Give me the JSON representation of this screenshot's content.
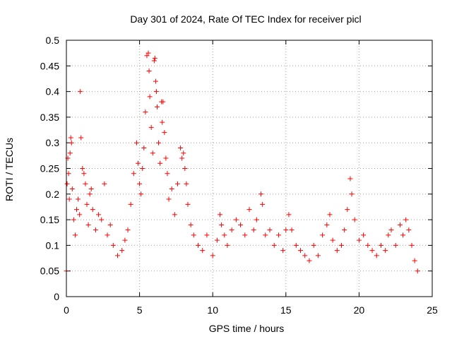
{
  "chart_data": {
    "type": "scatter",
    "title": "Day 301 of 2024, Rate Of TEC Index for receiver picl",
    "xlabel": "GPS time / hours",
    "ylabel": "ROTI / TECUs",
    "xlim": [
      0,
      25
    ],
    "ylim": [
      0,
      0.5
    ],
    "x_ticks": [
      0,
      5,
      10,
      15,
      20,
      25
    ],
    "y_ticks": [
      0,
      0.05,
      0.1,
      0.15,
      0.2,
      0.25,
      0.3,
      0.35,
      0.4,
      0.45,
      0.5
    ],
    "x_tick_labels": [
      "0",
      "5",
      "10",
      "15",
      "20",
      "25"
    ],
    "y_tick_labels": [
      "0",
      "0.05",
      "0.1",
      "0.15",
      "0.2",
      "0.25",
      "0.3",
      "0.35",
      "0.4",
      "0.45",
      "0.5"
    ],
    "grid": true,
    "marker": "+",
    "color": "#ff0000",
    "series": [
      {
        "name": "ROTI",
        "points": [
          [
            0.0,
            0.05
          ],
          [
            0.05,
            0.22
          ],
          [
            0.1,
            0.27
          ],
          [
            0.15,
            0.24
          ],
          [
            0.2,
            0.19
          ],
          [
            0.25,
            0.28
          ],
          [
            0.3,
            0.31
          ],
          [
            0.35,
            0.3
          ],
          [
            0.4,
            0.21
          ],
          [
            0.5,
            0.15
          ],
          [
            0.6,
            0.12
          ],
          [
            0.7,
            0.17
          ],
          [
            0.8,
            0.19
          ],
          [
            0.9,
            0.16
          ],
          [
            0.95,
            0.4
          ],
          [
            1.0,
            0.31
          ],
          [
            1.1,
            0.25
          ],
          [
            1.2,
            0.24
          ],
          [
            1.3,
            0.22
          ],
          [
            1.4,
            0.18
          ],
          [
            1.5,
            0.14
          ],
          [
            1.6,
            0.2
          ],
          [
            1.7,
            0.21
          ],
          [
            1.8,
            0.17
          ],
          [
            2.0,
            0.13
          ],
          [
            2.2,
            0.16
          ],
          [
            2.4,
            0.15
          ],
          [
            2.6,
            0.22
          ],
          [
            2.8,
            0.12
          ],
          [
            3.0,
            0.14
          ],
          [
            3.2,
            0.1
          ],
          [
            3.5,
            0.08
          ],
          [
            3.8,
            0.09
          ],
          [
            4.0,
            0.11
          ],
          [
            4.2,
            0.13
          ],
          [
            4.4,
            0.18
          ],
          [
            4.6,
            0.24
          ],
          [
            4.8,
            0.3
          ],
          [
            4.9,
            0.26
          ],
          [
            5.0,
            0.22
          ],
          [
            5.1,
            0.2
          ],
          [
            5.2,
            0.25
          ],
          [
            5.3,
            0.29
          ],
          [
            5.4,
            0.36
          ],
          [
            5.5,
            0.47
          ],
          [
            5.6,
            0.475
          ],
          [
            5.65,
            0.44
          ],
          [
            5.7,
            0.39
          ],
          [
            5.8,
            0.33
          ],
          [
            5.9,
            0.28
          ],
          [
            6.0,
            0.46
          ],
          [
            6.05,
            0.465
          ],
          [
            6.1,
            0.42
          ],
          [
            6.15,
            0.4
          ],
          [
            6.2,
            0.37
          ],
          [
            6.3,
            0.3
          ],
          [
            6.4,
            0.26
          ],
          [
            6.5,
            0.38
          ],
          [
            6.55,
            0.34
          ],
          [
            6.6,
            0.38
          ],
          [
            6.7,
            0.32
          ],
          [
            6.8,
            0.27
          ],
          [
            6.9,
            0.24
          ],
          [
            7.0,
            0.19
          ],
          [
            7.2,
            0.21
          ],
          [
            7.4,
            0.16
          ],
          [
            7.6,
            0.22
          ],
          [
            7.8,
            0.29
          ],
          [
            7.9,
            0.27
          ],
          [
            8.0,
            0.28
          ],
          [
            8.1,
            0.25
          ],
          [
            8.2,
            0.22
          ],
          [
            8.3,
            0.18
          ],
          [
            8.5,
            0.14
          ],
          [
            8.7,
            0.12
          ],
          [
            9.0,
            0.1
          ],
          [
            9.3,
            0.09
          ],
          [
            9.6,
            0.12
          ],
          [
            10.0,
            0.08
          ],
          [
            10.3,
            0.11
          ],
          [
            10.5,
            0.16
          ],
          [
            10.6,
            0.14
          ],
          [
            10.8,
            0.12
          ],
          [
            11.0,
            0.1
          ],
          [
            11.3,
            0.13
          ],
          [
            11.6,
            0.15
          ],
          [
            11.9,
            0.14
          ],
          [
            12.2,
            0.12
          ],
          [
            12.5,
            0.17
          ],
          [
            12.8,
            0.13
          ],
          [
            13.0,
            0.15
          ],
          [
            13.3,
            0.2
          ],
          [
            13.4,
            0.18
          ],
          [
            13.6,
            0.12
          ],
          [
            13.9,
            0.13
          ],
          [
            14.2,
            0.1
          ],
          [
            14.5,
            0.12
          ],
          [
            14.8,
            0.09
          ],
          [
            15.0,
            0.13
          ],
          [
            15.2,
            0.16
          ],
          [
            15.4,
            0.13
          ],
          [
            15.7,
            0.1
          ],
          [
            16.0,
            0.09
          ],
          [
            16.3,
            0.08
          ],
          [
            16.6,
            0.07
          ],
          [
            16.9,
            0.1
          ],
          [
            17.2,
            0.08
          ],
          [
            17.5,
            0.12
          ],
          [
            17.8,
            0.14
          ],
          [
            18.0,
            0.16
          ],
          [
            18.2,
            0.11
          ],
          [
            18.5,
            0.09
          ],
          [
            18.8,
            0.1
          ],
          [
            19.0,
            0.13
          ],
          [
            19.2,
            0.17
          ],
          [
            19.4,
            0.23
          ],
          [
            19.5,
            0.2
          ],
          [
            19.7,
            0.15
          ],
          [
            20.0,
            0.11
          ],
          [
            20.3,
            0.12
          ],
          [
            20.6,
            0.1
          ],
          [
            20.9,
            0.09
          ],
          [
            21.2,
            0.08
          ],
          [
            21.5,
            0.1
          ],
          [
            21.8,
            0.09
          ],
          [
            22.0,
            0.12
          ],
          [
            22.2,
            0.13
          ],
          [
            22.5,
            0.1
          ],
          [
            22.8,
            0.14
          ],
          [
            23.0,
            0.12
          ],
          [
            23.2,
            0.15
          ],
          [
            23.4,
            0.13
          ],
          [
            23.6,
            0.1
          ],
          [
            23.8,
            0.07
          ],
          [
            24.0,
            0.05
          ]
        ]
      }
    ]
  }
}
